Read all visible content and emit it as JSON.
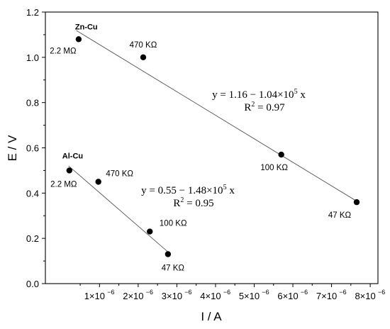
{
  "chart_data": {
    "type": "scatter",
    "xlabel": "I / A",
    "ylabel": "E / V",
    "xlim": [
      -4e-07,
      8.2e-06
    ],
    "ylim": [
      0,
      1.2
    ],
    "x_ticks": [
      {
        "value": 1e-06,
        "base": "1×10",
        "exp": "−6"
      },
      {
        "value": 2e-06,
        "base": "2×10",
        "exp": "−6"
      },
      {
        "value": 3e-06,
        "base": "3×10",
        "exp": "−6"
      },
      {
        "value": 4e-06,
        "base": "4×10",
        "exp": "−6"
      },
      {
        "value": 5e-06,
        "base": "5×10",
        "exp": "−6"
      },
      {
        "value": 6e-06,
        "base": "6×10",
        "exp": "−6"
      },
      {
        "value": 7e-06,
        "base": "7×10",
        "exp": "−6"
      },
      {
        "value": 8e-06,
        "base": "8×10",
        "exp": "−6"
      }
    ],
    "y_ticks": [
      {
        "value": 0.0,
        "label": "0.0"
      },
      {
        "value": 0.2,
        "label": "0.2"
      },
      {
        "value": 0.4,
        "label": "0.4"
      },
      {
        "value": 0.6,
        "label": "0.6"
      },
      {
        "value": 0.8,
        "label": "0.8"
      },
      {
        "value": 1.0,
        "label": "1.0"
      },
      {
        "value": 1.2,
        "label": "1.2"
      }
    ],
    "series": [
      {
        "name": "Zn-Cu",
        "points": [
          {
            "x": 4.6e-07,
            "y": 1.08,
            "label": "2.2 MΩ"
          },
          {
            "x": 2.13e-06,
            "y": 1.0,
            "label": "470 KΩ"
          },
          {
            "x": 5.7e-06,
            "y": 0.57,
            "label": "100 KΩ"
          },
          {
            "x": 7.65e-06,
            "y": 0.36,
            "label": "47 KΩ"
          }
        ],
        "fit": {
          "x_range": [
            4e-07,
            7.65e-06
          ],
          "intercept": 1.16,
          "slope": -104000,
          "eq_main": "y = 1.16 − 1.04×10",
          "eq_exp": "5",
          "eq_tail": " x",
          "r2_prefix": "R",
          "r2_exp": "2",
          "r2_suffix": " = 0.97"
        }
      },
      {
        "name": "Al-Cu",
        "points": [
          {
            "x": 2.2e-07,
            "y": 0.5,
            "label": "2.2 MΩ"
          },
          {
            "x": 9.7e-07,
            "y": 0.45,
            "label": "470 KΩ"
          },
          {
            "x": 2.3e-06,
            "y": 0.23,
            "label": "100 KΩ"
          },
          {
            "x": 2.77e-06,
            "y": 0.13,
            "label": "47 KΩ"
          }
        ],
        "fit": {
          "x_range": [
            2e-07,
            2.77e-06
          ],
          "intercept": 0.55,
          "slope": -148000,
          "eq_main": "y = 0.55 − 1.48×10",
          "eq_exp": "5",
          "eq_tail": " x",
          "r2_prefix": "R",
          "r2_exp": "2",
          "r2_suffix": " = 0.95"
        }
      }
    ],
    "grid": false,
    "legend": "none"
  }
}
